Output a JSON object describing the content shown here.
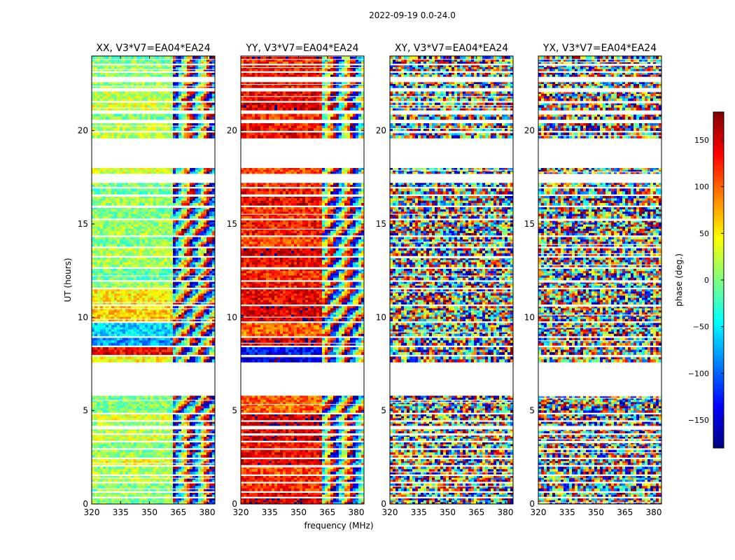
{
  "figure": {
    "suptitle": "2022-09-19 0.0-24.0",
    "xlabel": "frequency (MHz)",
    "ylabel": "UT (hours)"
  },
  "colorbar": {
    "label": "phase (deg.)",
    "ticks": [
      150,
      100,
      50,
      0,
      -50,
      -100,
      -150
    ],
    "tick_labels": [
      "150",
      "100",
      "50",
      "0",
      "−50",
      "−100",
      "−150"
    ],
    "range": [
      -180,
      180
    ],
    "colormap": "jet",
    "colors": [
      "#00007f",
      "#0000ff",
      "#007fff",
      "#00ffff",
      "#7fff7f",
      "#ffff00",
      "#ff7f00",
      "#ff0000",
      "#7f0000"
    ]
  },
  "chart_data": {
    "type": "heatmap",
    "description_axes": "frequency vs UT time, colour = phase",
    "xlim": [
      320,
      384
    ],
    "ylim": [
      0,
      24
    ],
    "x_ticks": [
      320,
      335,
      350,
      365,
      380
    ],
    "x_tick_labels": [
      "320",
      "335",
      "350",
      "365",
      "380"
    ],
    "y_ticks": [
      0,
      5,
      10,
      15,
      20
    ],
    "y_tick_labels": [
      "0",
      "5",
      "10",
      "15",
      "20"
    ],
    "colorbar_range": [
      -180,
      180
    ],
    "panels": [
      {
        "title": "XX, V3*V7=EA04*EA24",
        "pol": "XX",
        "character": "smooth"
      },
      {
        "title": "YY, V3*V7=EA04*EA24",
        "pol": "YY",
        "character": "smooth"
      },
      {
        "title": "XY, V3*V7=EA04*EA24",
        "pol": "XY",
        "character": "noisy"
      },
      {
        "title": "YX, V3*V7=EA04*EA24",
        "pol": "YX",
        "character": "noisy"
      }
    ],
    "time_blocks_hours": [
      [
        0.0,
        0.3
      ],
      [
        0.4,
        0.6
      ],
      [
        0.7,
        1.1
      ],
      [
        1.2,
        1.5
      ],
      [
        1.6,
        2.0
      ],
      [
        2.1,
        2.4
      ],
      [
        2.5,
        2.9
      ],
      [
        3.0,
        3.3
      ],
      [
        3.4,
        3.7
      ],
      [
        3.8,
        4.0
      ],
      [
        4.2,
        4.4
      ],
      [
        4.5,
        4.8
      ],
      [
        4.9,
        5.8
      ],
      [
        7.6,
        7.9
      ],
      [
        8.0,
        8.4
      ],
      [
        8.5,
        8.9
      ],
      [
        9.0,
        9.7
      ],
      [
        9.8,
        10.6
      ],
      [
        10.7,
        11.5
      ],
      [
        11.6,
        11.9
      ],
      [
        12.0,
        12.6
      ],
      [
        12.7,
        13.2
      ],
      [
        13.3,
        13.7
      ],
      [
        13.8,
        14.3
      ],
      [
        14.4,
        15.2
      ],
      [
        15.3,
        15.9
      ],
      [
        16.0,
        16.5
      ],
      [
        16.6,
        16.9
      ],
      [
        17.0,
        17.2
      ],
      [
        17.7,
        18.0
      ],
      [
        19.6,
        19.9
      ],
      [
        20.0,
        20.4
      ],
      [
        20.6,
        20.9
      ],
      [
        21.1,
        21.5
      ],
      [
        21.6,
        22.1
      ],
      [
        22.3,
        22.6
      ],
      [
        22.9,
        23.1
      ],
      [
        23.2,
        23.5
      ],
      [
        23.6,
        23.8
      ],
      [
        23.85,
        24.0
      ]
    ],
    "smooth_phase_by_block": {
      "XX": [
        0,
        10,
        0,
        20,
        10,
        40,
        10,
        0,
        30,
        20,
        10,
        30,
        0,
        40,
        140,
        -80,
        -60,
        60,
        50,
        10,
        -10,
        10,
        20,
        0,
        10,
        0,
        10,
        -10,
        0,
        30,
        20,
        20,
        0,
        30,
        20,
        10,
        0,
        10,
        0,
        -10
      ],
      "YY": [
        150,
        140,
        120,
        130,
        110,
        150,
        140,
        130,
        150,
        140,
        160,
        150,
        100,
        -150,
        -130,
        150,
        100,
        150,
        140,
        130,
        120,
        140,
        150,
        110,
        130,
        120,
        140,
        130,
        120,
        110,
        140,
        130,
        120,
        150,
        140,
        130,
        140,
        130,
        120,
        150
      ]
    },
    "smooth_fraction_of_band": 0.64
  }
}
